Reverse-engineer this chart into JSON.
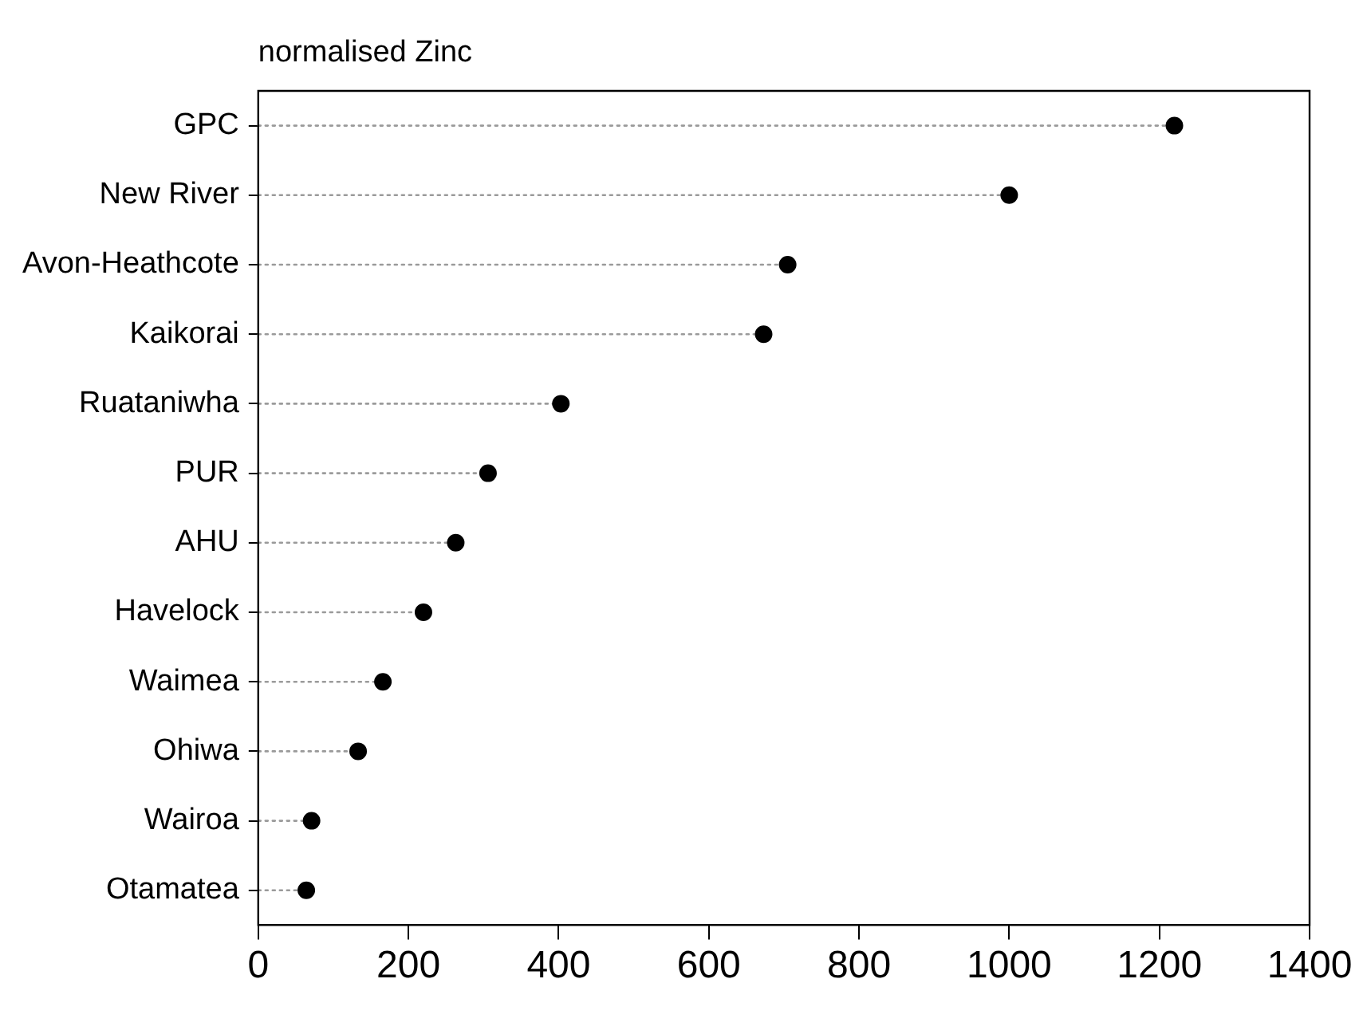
{
  "chart_data": {
    "type": "lollipop",
    "orientation": "horizontal",
    "title": "normalised Zinc",
    "categories": [
      "GPC",
      "New River",
      "Avon-Heathcote",
      "Kaikorai",
      "Ruataniwha",
      "PUR",
      "AHU",
      "Havelock",
      "Waimea",
      "Ohiwa",
      "Wairoa",
      "Otamatea"
    ],
    "values": [
      1220,
      1000,
      705,
      673,
      403,
      306,
      263,
      220,
      166,
      133,
      71,
      64
    ],
    "color": "#000000",
    "marker": "circle",
    "line_style": "dotted",
    "xlim": [
      0,
      1400
    ],
    "xticks": [
      0,
      200,
      400,
      600,
      800,
      1000,
      1200,
      1400
    ],
    "grid": false,
    "legend": false
  }
}
